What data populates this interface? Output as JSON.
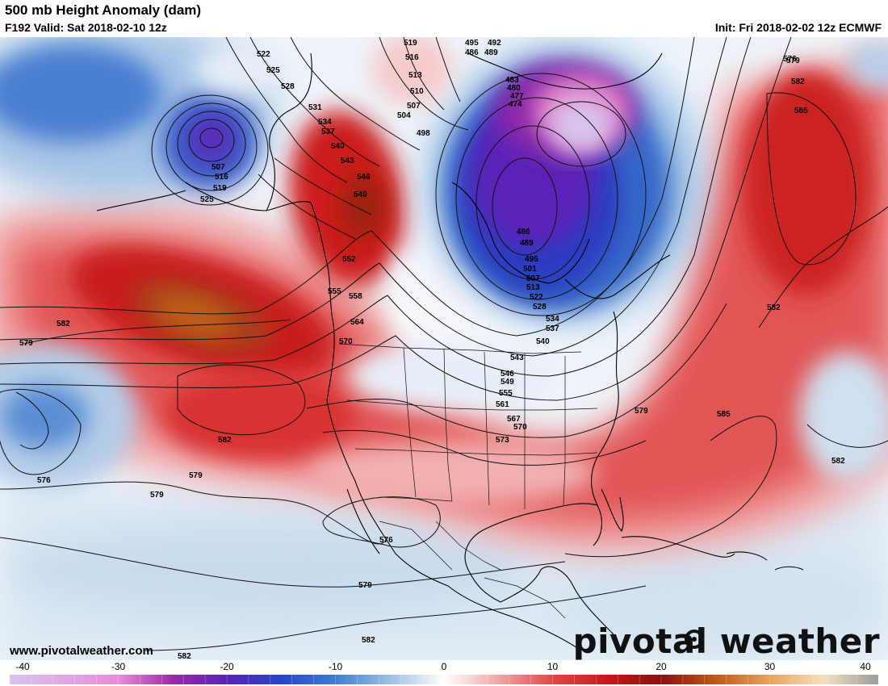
{
  "header": {
    "title": "500 mb Height Anomaly (dam)",
    "valid": "F192 Valid: Sat 2018-02-10 12z",
    "init": "Init: Fri 2018-02-02 12z ECMWF"
  },
  "footer": {
    "website": "www.pivotalweather.com",
    "brand": "pivotal weather"
  },
  "colorbar": {
    "min": -40,
    "max": 40,
    "ticks": [
      "-40",
      "-30",
      "-20",
      "-10",
      "0",
      "10",
      "20",
      "30",
      "40"
    ],
    "colors": {
      "neg40": "#d8c4ee",
      "neg30": "#e88cd8",
      "neg25": "#9a2aa8",
      "neg20": "#5a22b8",
      "neg15": "#2844c8",
      "neg10": "#3f7ed0",
      "neg5": "#9cc0e2",
      "zero": "#ffffff",
      "pos5": "#f2a6a6",
      "pos10": "#e04848",
      "pos15": "#c81818",
      "pos20": "#8a1010",
      "pos25": "#c05818",
      "pos30": "#e8a45c",
      "pos35": "#f4e0c0",
      "pos40": "#9c9c9c"
    }
  },
  "map": {
    "contour_labels": [
      "492",
      "495",
      "486",
      "489",
      "483",
      "480",
      "477",
      "474",
      "498",
      "501",
      "504",
      "507",
      "510",
      "513",
      "516",
      "519",
      "522",
      "525",
      "528",
      "531",
      "534",
      "537",
      "540",
      "543",
      "546",
      "549",
      "552",
      "555",
      "558",
      "561",
      "564",
      "567",
      "570",
      "573",
      "576",
      "579",
      "582",
      "585"
    ]
  }
}
